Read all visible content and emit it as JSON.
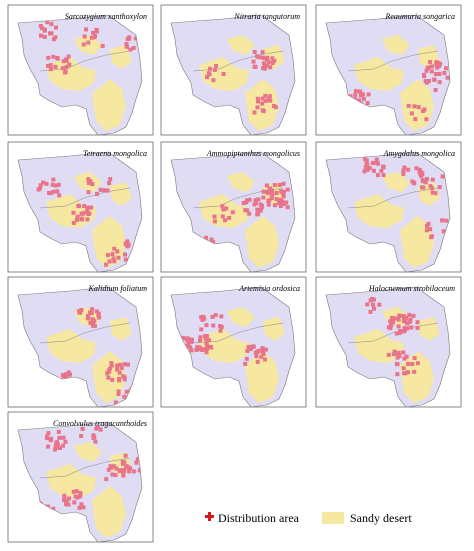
{
  "panels": [
    {
      "species": "Sarcozygium xanthoxylon"
    },
    {
      "species": "Nitraria tangutorum"
    },
    {
      "species": "Reaumuria songarica"
    },
    {
      "species": "Tetraena mongolica"
    },
    {
      "species": "Ammopiptanthus mongolicus"
    },
    {
      "species": "Amygdalus mongolica"
    },
    {
      "species": "Kalidium foliatum"
    },
    {
      "species": "Artemisia ordosica"
    },
    {
      "species": "Halocnemum strobilaceum"
    },
    {
      "species": "Convolvulus tragacanthoides"
    }
  ],
  "legend": {
    "distribution": "Distribution area",
    "sandy": "Sandy desert"
  }
}
